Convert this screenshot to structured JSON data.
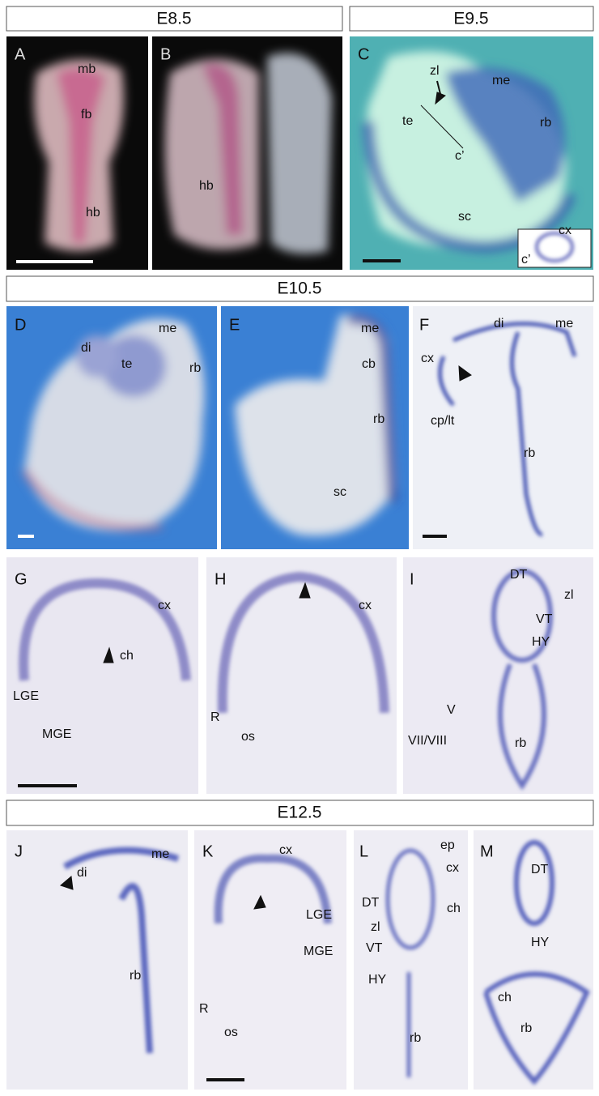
{
  "headers": [
    "E8.5",
    "E9.5",
    "E10.5",
    "E12.5"
  ],
  "panels": [
    {
      "letter": "A",
      "labels": [
        "mb",
        "fb",
        "hb"
      ]
    },
    {
      "letter": "B",
      "labels": [
        "hb"
      ]
    },
    {
      "letter": "C",
      "labels": [
        "zl",
        "me",
        "te",
        "c’",
        "rb",
        "sc",
        "cx",
        "c’"
      ]
    },
    {
      "letter": "D",
      "labels": [
        "me",
        "di",
        "te",
        "rb"
      ]
    },
    {
      "letter": "E",
      "labels": [
        "me",
        "cb",
        "rb",
        "sc"
      ]
    },
    {
      "letter": "F",
      "labels": [
        "di",
        "me",
        "cx",
        "cp/lt",
        "rb"
      ]
    },
    {
      "letter": "G",
      "labels": [
        "cx",
        "ch",
        "LGE",
        "MGE"
      ]
    },
    {
      "letter": "H",
      "labels": [
        "cx",
        "R",
        "os"
      ]
    },
    {
      "letter": "I",
      "labels": [
        "DT",
        "zl",
        "VT",
        "HY",
        "V",
        "VII/VIII",
        "rb"
      ]
    },
    {
      "letter": "J",
      "labels": [
        "me",
        "di",
        "rb"
      ]
    },
    {
      "letter": "K",
      "labels": [
        "cx",
        "LGE",
        "MGE",
        "R",
        "os"
      ]
    },
    {
      "letter": "L",
      "labels": [
        "ep",
        "cx",
        "ch",
        "DT",
        "zl",
        "VT",
        "HY",
        "rb"
      ]
    },
    {
      "letter": "M",
      "labels": [
        "DT",
        "HY",
        "ch",
        "rb"
      ]
    }
  ]
}
